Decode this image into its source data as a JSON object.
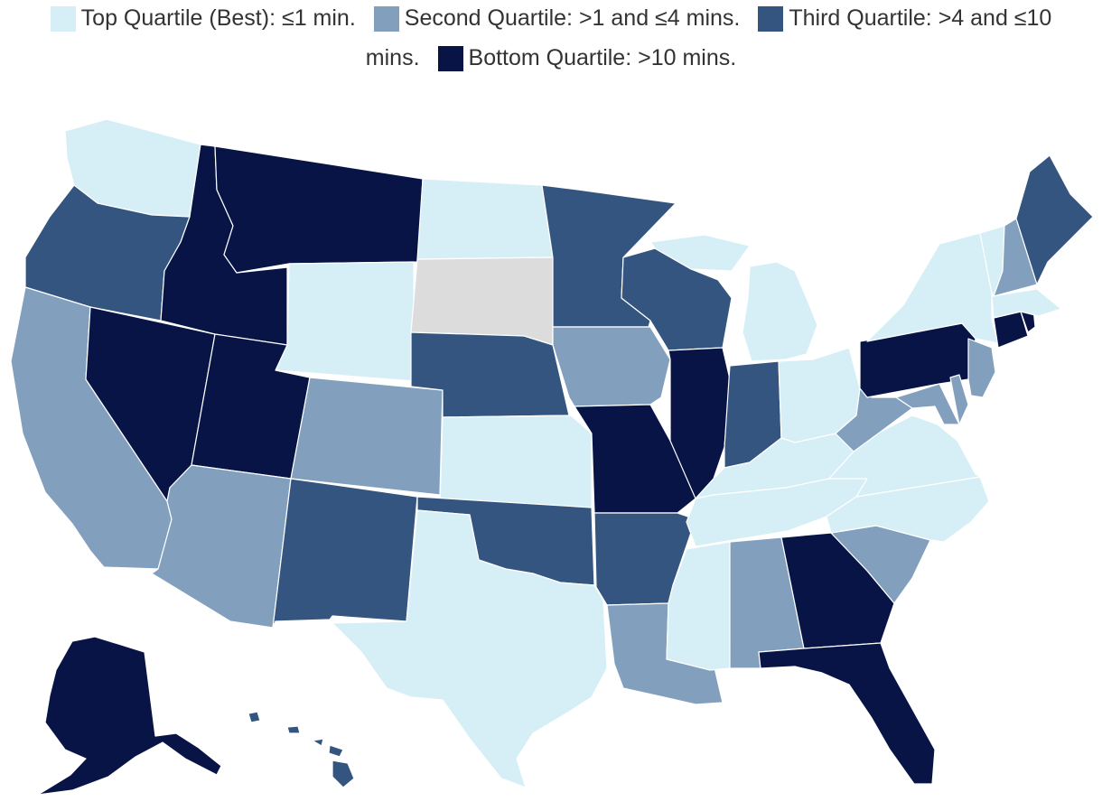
{
  "legend": {
    "row1": [
      {
        "label": "Top Quartile (Best): ≤1 min.",
        "color": "#d6eef6"
      },
      {
        "label": "Second Quartile: >1 and ≤4 mins.",
        "color": "#82a0bd"
      },
      {
        "label": "Third Quartile: >4 and ≤10",
        "color": "#34557f"
      }
    ],
    "row2_lead": "mins.",
    "row2": [
      {
        "label": "Bottom Quartile: >10 mins.",
        "color": "#071445"
      }
    ]
  },
  "colors": {
    "top": "#d6eef6",
    "second": "#82a0bd",
    "third": "#34557f",
    "bottom": "#071445",
    "no_data": "#dcdcdc"
  },
  "states": {
    "WA": "top",
    "OR": "third",
    "CA": "second",
    "NV": "bottom",
    "ID": "bottom",
    "MT": "bottom",
    "WY": "top",
    "UT": "bottom",
    "AZ": "second",
    "CO": "second",
    "NM": "third",
    "ND": "top",
    "SD": "no_data",
    "NE": "third",
    "KS": "top",
    "OK": "third",
    "TX": "top",
    "MN": "third",
    "IA": "second",
    "MO": "bottom",
    "AR": "third",
    "LA": "second",
    "WI": "third",
    "IL": "bottom",
    "MI": "top",
    "IN": "third",
    "OH": "top",
    "KY": "top",
    "TN": "top",
    "MS": "top",
    "AL": "second",
    "GA": "bottom",
    "FL": "bottom",
    "SC": "second",
    "NC": "top",
    "VA": "top",
    "WV": "second",
    "MD": "second",
    "DE": "second",
    "NJ": "second",
    "PA": "bottom",
    "NY": "top",
    "CT": "bottom",
    "RI": "bottom",
    "MA": "top",
    "VT": "top",
    "NH": "second",
    "ME": "third",
    "AK": "bottom",
    "HI": "third"
  }
}
